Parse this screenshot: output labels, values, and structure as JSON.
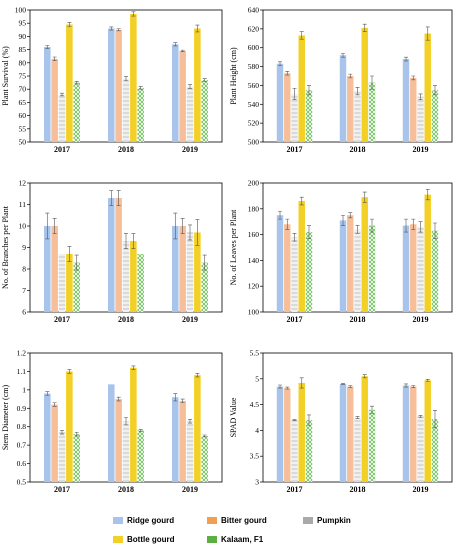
{
  "colors": {
    "Ridge gourd": "#a9c4eb",
    "Bitter gourd": "#f6bf99",
    "Pumpkin": "#c9c9c9",
    "Bottle gourd": "#f2d025",
    "Kalaam, F1": "#79c464"
  },
  "legend": {
    "items": [
      "Ridge gourd",
      "Bitter gourd",
      "Pumpkin",
      "Bottle gourd",
      "Kalaam, F1"
    ]
  },
  "chart_data": [
    {
      "type": "bar",
      "ylabel": "Plant Survival (%)",
      "ylim": [
        50,
        100
      ],
      "ticks": [
        50,
        55,
        60,
        65,
        70,
        75,
        80,
        85,
        90,
        95,
        100
      ],
      "tick_labels": [
        "50",
        "55",
        "60",
        "65",
        "70",
        "75",
        "80",
        "85",
        "90",
        "95",
        "100"
      ],
      "categories": [
        "2017",
        "2018",
        "2019"
      ],
      "grid": false,
      "series": [
        {
          "name": "Ridge gourd",
          "values": [
            86,
            93,
            87
          ],
          "err": [
            0.6,
            0.6,
            0.6
          ]
        },
        {
          "name": "Bitter gourd",
          "values": [
            81.5,
            92.5,
            84.5
          ],
          "err": [
            0.7,
            0.4,
            0.3
          ]
        },
        {
          "name": "Pumpkin",
          "values": [
            68,
            74,
            71
          ],
          "err": [
            0.5,
            0.8,
            0.7
          ]
        },
        {
          "name": "Bottle gourd",
          "values": [
            94.5,
            98.5,
            93
          ],
          "err": [
            0.8,
            0.8,
            1.3
          ]
        },
        {
          "name": "Kalaam, F1",
          "values": [
            72.5,
            70.5,
            73.5
          ],
          "err": [
            0.5,
            0.5,
            0.5
          ]
        }
      ]
    },
    {
      "type": "bar",
      "ylabel": "Plant Height (cm)",
      "ylim": [
        500,
        640
      ],
      "ticks": [
        500,
        520,
        540,
        560,
        580,
        600,
        620,
        640
      ],
      "tick_labels": [
        "500",
        "520",
        "540",
        "560",
        "580",
        "600",
        "620",
        "640"
      ],
      "categories": [
        "2017",
        "2018",
        "2019"
      ],
      "grid": false,
      "series": [
        {
          "name": "Ridge gourd",
          "values": [
            583,
            592,
            588
          ],
          "err": [
            2,
            2,
            2
          ]
        },
        {
          "name": "Bitter gourd",
          "values": [
            573,
            570,
            568
          ],
          "err": [
            2,
            2,
            2
          ]
        },
        {
          "name": "Pumpkin",
          "values": [
            551,
            554,
            548
          ],
          "err": [
            6,
            4,
            3
          ]
        },
        {
          "name": "Bottle gourd",
          "values": [
            613,
            621,
            615
          ],
          "err": [
            4,
            4,
            7
          ]
        },
        {
          "name": "Kalaam, F1",
          "values": [
            555,
            563,
            555
          ],
          "err": [
            5,
            7,
            5
          ]
        }
      ]
    },
    {
      "type": "bar",
      "ylabel": "No. of Branches per Plant",
      "ylim": [
        6,
        12
      ],
      "ticks": [
        6,
        7,
        8,
        9,
        10,
        11,
        12
      ],
      "tick_labels": [
        "6",
        "7",
        "8",
        "9",
        "10",
        "11",
        "12"
      ],
      "categories": [
        "2017",
        "2018",
        "2019"
      ],
      "grid": false,
      "series": [
        {
          "name": "Ridge gourd",
          "values": [
            10,
            11.3,
            10
          ],
          "err": [
            0.6,
            0.35,
            0.6
          ]
        },
        {
          "name": "Bitter gourd",
          "values": [
            10,
            11.3,
            10
          ],
          "err": [
            0.35,
            0.35,
            0.35
          ]
        },
        {
          "name": "Pumpkin",
          "values": [
            8.7,
            9.3,
            9.7
          ],
          "err": [
            0,
            0.35,
            0.35
          ]
        },
        {
          "name": "Bottle gourd",
          "values": [
            8.7,
            9.3,
            9.7
          ],
          "err": [
            0.35,
            0.35,
            0.6
          ]
        },
        {
          "name": "Kalaam, F1",
          "values": [
            8.3,
            8.7,
            8.3
          ],
          "err": [
            0.35,
            0,
            0.35
          ]
        }
      ]
    },
    {
      "type": "bar",
      "ylabel": "No. of Leaves per Plant",
      "ylim": [
        100,
        200
      ],
      "ticks": [
        100,
        120,
        140,
        160,
        180,
        200
      ],
      "tick_labels": [
        "100",
        "120",
        "140",
        "160",
        "180",
        "200"
      ],
      "categories": [
        "2017",
        "2018",
        "2019"
      ],
      "grid": false,
      "series": [
        {
          "name": "Ridge gourd",
          "values": [
            175,
            171,
            167
          ],
          "err": [
            3,
            4,
            5
          ]
        },
        {
          "name": "Bitter gourd",
          "values": [
            168,
            175,
            168
          ],
          "err": [
            4,
            2,
            4
          ]
        },
        {
          "name": "Pumpkin",
          "values": [
            158,
            164,
            166
          ],
          "err": [
            3,
            3,
            4
          ]
        },
        {
          "name": "Bottle gourd",
          "values": [
            186,
            189,
            191
          ],
          "err": [
            3,
            4,
            4
          ]
        },
        {
          "name": "Kalaam, F1",
          "values": [
            162,
            167,
            163
          ],
          "err": [
            5,
            5,
            6
          ]
        }
      ]
    },
    {
      "type": "bar",
      "ylabel": "Stem Diameter (cm)",
      "ylim": [
        0.5,
        1.2
      ],
      "ticks": [
        0.5,
        0.6,
        0.7,
        0.8,
        0.9,
        1.0,
        1.1,
        1.2
      ],
      "tick_labels": [
        "0.5",
        "0.6",
        "0.7",
        "0.8",
        "0.9",
        "1",
        "1.1",
        "1.2"
      ],
      "categories": [
        "2017",
        "2018",
        "2019"
      ],
      "grid": false,
      "series": [
        {
          "name": "Ridge gourd",
          "values": [
            0.98,
            1.03,
            0.96
          ],
          "err": [
            0.01,
            0,
            0.02
          ]
        },
        {
          "name": "Bitter gourd",
          "values": [
            0.92,
            0.95,
            0.94
          ],
          "err": [
            0.01,
            0.01,
            0.01
          ]
        },
        {
          "name": "Pumpkin",
          "values": [
            0.77,
            0.83,
            0.83
          ],
          "err": [
            0.01,
            0.02,
            0.01
          ]
        },
        {
          "name": "Bottle gourd",
          "values": [
            1.1,
            1.12,
            1.08
          ],
          "err": [
            0.01,
            0.01,
            0.01
          ]
        },
        {
          "name": "Kalaam, F1",
          "values": [
            0.76,
            0.78,
            0.75
          ],
          "err": [
            0.01,
            0.005,
            0.005
          ]
        }
      ]
    },
    {
      "type": "bar",
      "ylabel": "SPAD Value",
      "ylim": [
        3,
        5.5
      ],
      "ticks": [
        3,
        3.5,
        4,
        4.5,
        5,
        5.5
      ],
      "tick_labels": [
        "3",
        "3.5",
        "4",
        "4.5",
        "5",
        "5.5"
      ],
      "categories": [
        "2017",
        "2018",
        "2019"
      ],
      "grid": false,
      "series": [
        {
          "name": "Ridge gourd",
          "values": [
            4.85,
            4.9,
            4.87
          ],
          "err": [
            0.03,
            0.01,
            0.03
          ]
        },
        {
          "name": "Bitter gourd",
          "values": [
            4.82,
            4.85,
            4.85
          ],
          "err": [
            0.02,
            0.02,
            0.02
          ]
        },
        {
          "name": "Pumpkin",
          "values": [
            4.2,
            4.25,
            4.27
          ],
          "err": [
            0.01,
            0.02,
            0.02
          ]
        },
        {
          "name": "Bottle gourd",
          "values": [
            4.92,
            5.05,
            4.97
          ],
          "err": [
            0.1,
            0.03,
            0.02
          ]
        },
        {
          "name": "Kalaam, F1",
          "values": [
            4.2,
            4.4,
            4.22
          ],
          "err": [
            0.1,
            0.07,
            0.17
          ]
        }
      ]
    }
  ]
}
